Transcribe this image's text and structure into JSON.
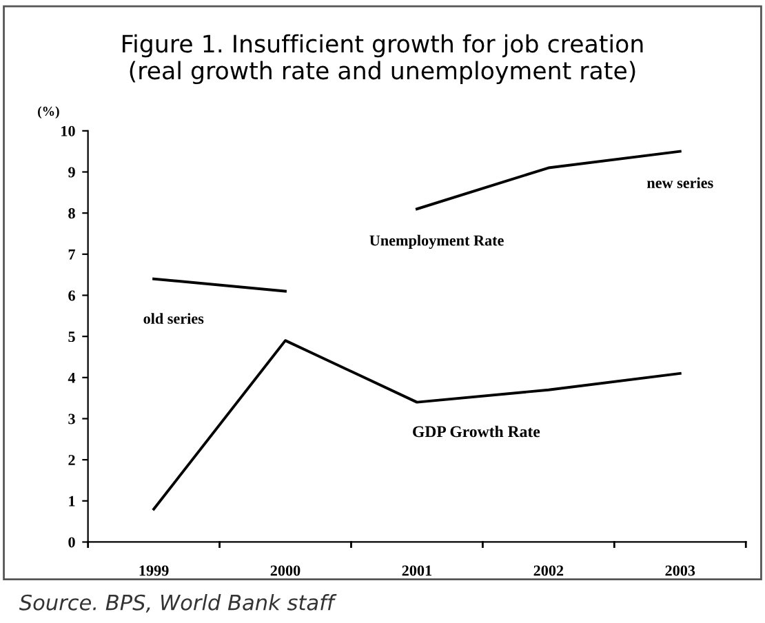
{
  "chart_data": {
    "type": "line",
    "title": "Figure 1. Insufficient growth for job creation\n(real growth rate and unemployment rate)",
    "ylabel": "(%)",
    "categories": [
      "1999",
      "2000",
      "2001",
      "2002",
      "2003"
    ],
    "series": [
      {
        "name": "old series",
        "color": "#000000",
        "values": [
          6.4,
          6.1,
          null,
          null,
          null
        ]
      },
      {
        "name": "new series",
        "color": "#000000",
        "values": [
          null,
          null,
          8.1,
          9.1,
          9.5
        ]
      },
      {
        "name": "GDP Growth Rate",
        "color": "#000000",
        "values": [
          0.8,
          4.9,
          3.4,
          3.7,
          4.1
        ]
      }
    ],
    "annotations": [
      "Unemployment Rate",
      "Source. BPS, World Bank staff"
    ],
    "ylim": [
      0,
      10
    ],
    "yticks": [
      0,
      1,
      2,
      3,
      4,
      5,
      6,
      7,
      8,
      9,
      10
    ],
    "grid": false,
    "legend": false,
    "marker": "none",
    "line_style": "solid"
  }
}
